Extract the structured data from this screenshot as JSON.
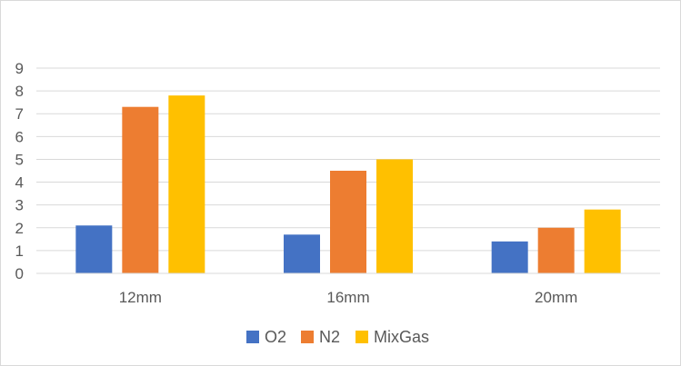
{
  "chart_data": {
    "type": "bar",
    "categories": [
      "12mm",
      "16mm",
      "20mm"
    ],
    "series": [
      {
        "name": "O2",
        "values": [
          2.1,
          1.7,
          1.4
        ],
        "color": "#4472c4"
      },
      {
        "name": "N2",
        "values": [
          7.3,
          4.5,
          2.0
        ],
        "color": "#ed7d31"
      },
      {
        "name": "MixGas",
        "values": [
          7.8,
          5.0,
          2.8
        ],
        "color": "#ffc000"
      }
    ],
    "yticks": [
      "0",
      "1",
      "2",
      "3",
      "4",
      "5",
      "6",
      "7",
      "8",
      "9"
    ],
    "ylim": [
      0,
      9
    ],
    "grid": true,
    "legend_position": "bottom",
    "title": "",
    "xlabel": "",
    "ylabel": ""
  }
}
